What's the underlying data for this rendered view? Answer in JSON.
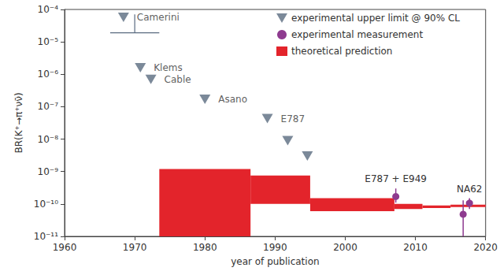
{
  "chart_data": {
    "type": "scatter",
    "log": "y",
    "grid": false,
    "legend": "upper right",
    "xlabel": "year of publication",
    "ylabel": "BR(K⁺→π⁺νν̄)",
    "xlim": [
      1960,
      2020
    ],
    "xticks": [
      1960,
      1970,
      1980,
      1990,
      2000,
      2010,
      2020
    ],
    "ylim": [
      1e-11,
      0.0001
    ],
    "yticks": [
      {
        "value": 1e-11,
        "label": "10⁻¹¹"
      },
      {
        "value": 1e-10,
        "label": "10⁻¹⁰"
      },
      {
        "value": 1e-09,
        "label": "10⁻⁹"
      },
      {
        "value": 1e-08,
        "label": "10⁻⁸"
      },
      {
        "value": 1e-07,
        "label": "10⁻⁷"
      },
      {
        "value": 1e-06,
        "label": "10⁻⁶"
      },
      {
        "value": 1e-05,
        "label": "10⁻⁵"
      },
      {
        "value": 0.0001,
        "label": "10⁻⁴"
      }
    ],
    "series": [
      {
        "name": "experimental upper limit @ 90% CL",
        "type": "scatter",
        "marker": "triangle-down",
        "color": "#5a6b80",
        "x": [
          1968.4,
          1970.8,
          1972.3,
          1980.0,
          1988.9,
          1991.8,
          1994.6
        ],
        "values": [
          5.7e-05,
          1.6e-06,
          7e-07,
          1.7e-07,
          4.3e-08,
          9e-09,
          3e-09
        ],
        "annotations": [
          "Camerini",
          "Klems",
          "Cable",
          "Asano",
          "E787",
          null,
          null
        ],
        "segments": [
          {
            "x": [
              1966.5,
              1973.5
            ],
            "y": [
              1.9e-05,
              1.9e-05
            ]
          },
          {
            "x": [
              1970.0,
              1970.0
            ],
            "y": [
              1.9e-05,
              7e-05
            ]
          }
        ]
      },
      {
        "name": "experimental measurement",
        "type": "errorbar",
        "marker": "circle",
        "color": "#8e3b8f",
        "x": [
          2007.2,
          2016.8,
          2017.7
        ],
        "values": [
          1.7e-10,
          4.8e-11,
          1.06e-10
        ],
        "error_low": [
          1.1e-10,
          1e-11,
          7e-11
        ],
        "error_high": [
          3e-10,
          1.3e-10,
          1.5e-10
        ],
        "annotations": [
          "E787 + E949",
          null,
          "NA62"
        ]
      },
      {
        "name": "theoretical prediction",
        "type": "range_bar",
        "color": "#e3242b",
        "x_start": [
          1973.5,
          1986.5,
          1995.0,
          2007.0,
          2011.0,
          2015.0
        ],
        "x_end": [
          1986.5,
          1995.0,
          2007.0,
          2011.0,
          2015.0,
          2020.0
        ],
        "low": [
          1e-11,
          1e-10,
          6e-11,
          7e-11,
          7.5e-11,
          8e-11
        ],
        "high": [
          1.2e-09,
          7.5e-10,
          1.5e-10,
          1e-10,
          9e-11,
          9.5e-11
        ]
      }
    ]
  }
}
